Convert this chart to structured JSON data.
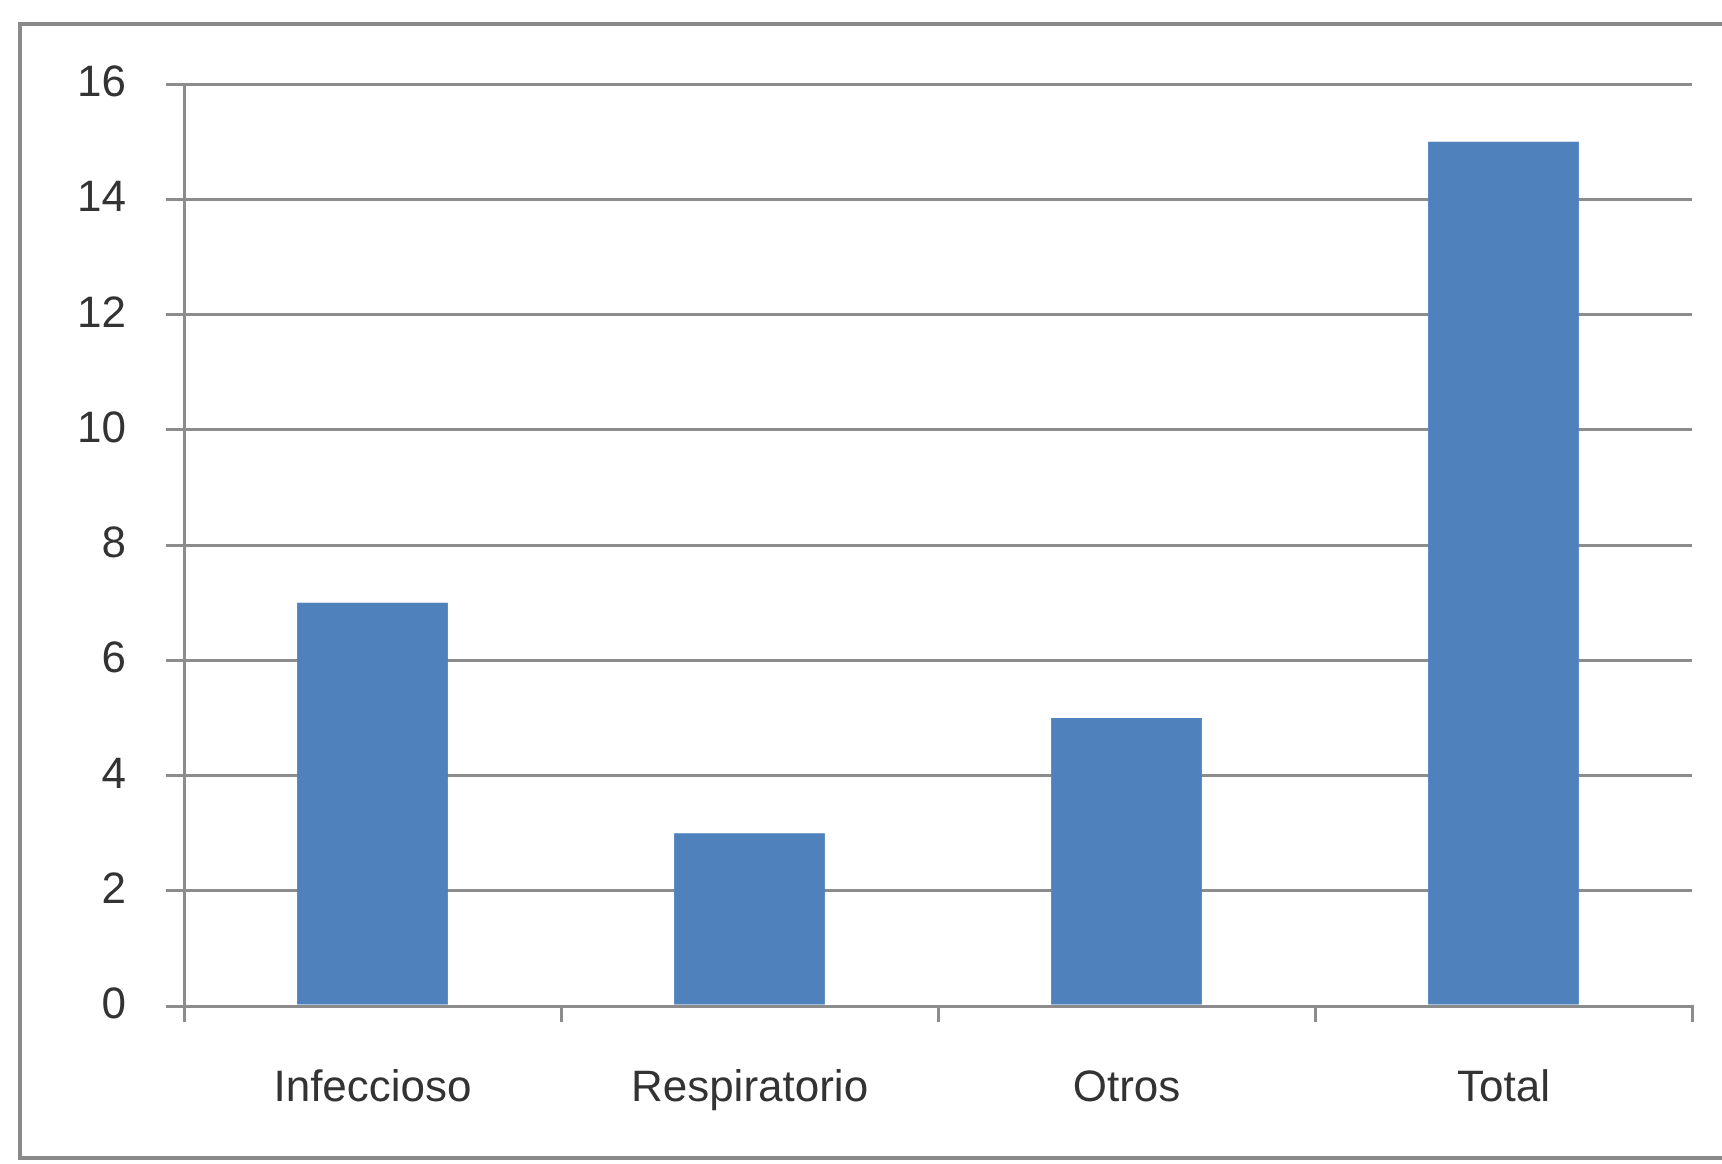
{
  "chart_data": {
    "type": "bar",
    "categories": [
      "Infeccioso",
      "Respiratorio",
      "Otros",
      "Total"
    ],
    "values": [
      7,
      3,
      5,
      15
    ],
    "color": "#4f81bd",
    "ylim": [
      0,
      16
    ],
    "yticks": [
      0,
      2,
      4,
      6,
      8,
      10,
      12,
      14,
      16
    ],
    "grid": "y"
  }
}
